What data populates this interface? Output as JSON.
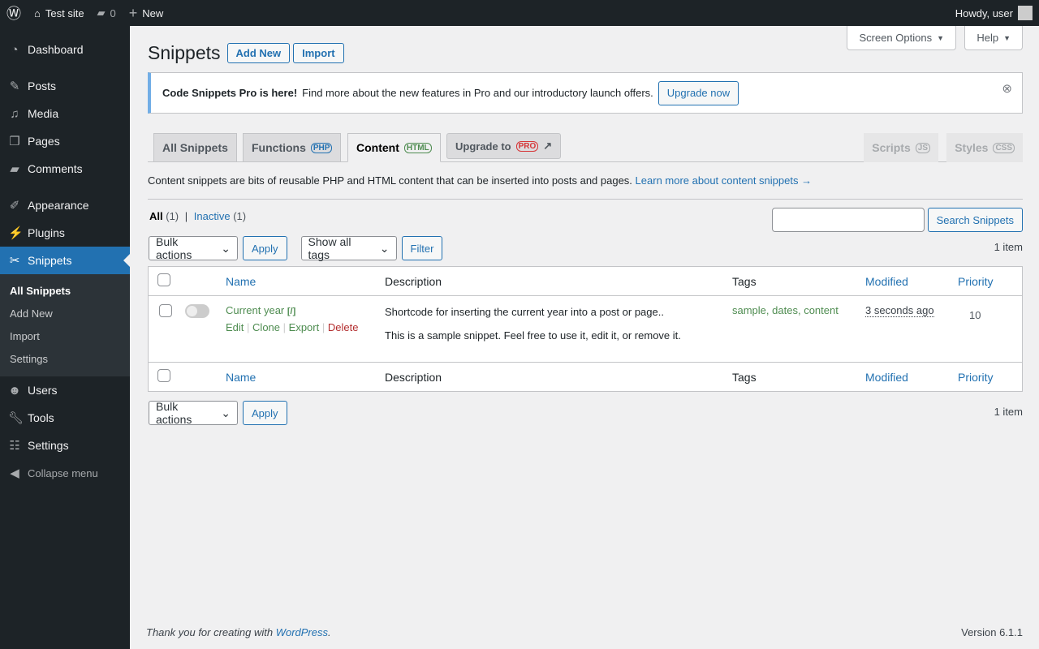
{
  "adminbar": {
    "site": "Test site",
    "comments": "0",
    "new": "New",
    "howdy": "Howdy, user"
  },
  "sidebar": {
    "items": [
      "Dashboard",
      "Posts",
      "Media",
      "Pages",
      "Comments",
      "Appearance",
      "Plugins",
      "Snippets",
      "Users",
      "Tools",
      "Settings",
      "Collapse menu"
    ],
    "sub": [
      "All Snippets",
      "Add New",
      "Import",
      "Settings"
    ]
  },
  "header": {
    "title": "Snippets",
    "add_new": "Add New",
    "import": "Import",
    "screen_options": "Screen Options",
    "help": "Help"
  },
  "notice": {
    "bold": "Code Snippets Pro is here!",
    "text": "Find more about the new features in Pro and our introductory launch offers.",
    "button": "Upgrade now"
  },
  "tabs": [
    {
      "label": "All Snippets"
    },
    {
      "label": "Functions",
      "badge": "PHP"
    },
    {
      "label": "Content",
      "badge": "HTML"
    },
    {
      "label": "Upgrade to",
      "badge": "PRO"
    },
    {
      "label": "Scripts",
      "badge": "JS"
    },
    {
      "label": "Styles",
      "badge": "CSS"
    }
  ],
  "description": {
    "text": "Content snippets are bits of reusable PHP and HTML content that can be inserted into posts and pages.",
    "link": "Learn more about content snippets →"
  },
  "filters": {
    "all": "All",
    "all_count": "(1)",
    "sep": "|",
    "inactive": "Inactive",
    "inactive_count": "(1)",
    "search_button": "Search Snippets",
    "search_value": "",
    "bulk": "Bulk actions",
    "apply": "Apply",
    "tags": "Show all tags",
    "filter": "Filter",
    "count": "1 item"
  },
  "table": {
    "columns": [
      "Name",
      "Description",
      "Tags",
      "Modified",
      "Priority"
    ],
    "rows": [
      {
        "name": "Current year",
        "shortcode": "[/]",
        "actions": [
          "Edit",
          "Clone",
          "Export",
          "Delete"
        ],
        "desc1": "Shortcode for inserting the current year into a post or page..",
        "desc2": "This is a sample snippet. Feel free to use it, edit it, or remove it.",
        "tags": [
          "sample",
          "dates",
          "content"
        ],
        "modified": "3 seconds ago",
        "priority": "10",
        "active": false
      }
    ]
  },
  "footer": {
    "thanks": "Thank you for creating with",
    "wp": "WordPress",
    "version": "Version 6.1.1"
  }
}
